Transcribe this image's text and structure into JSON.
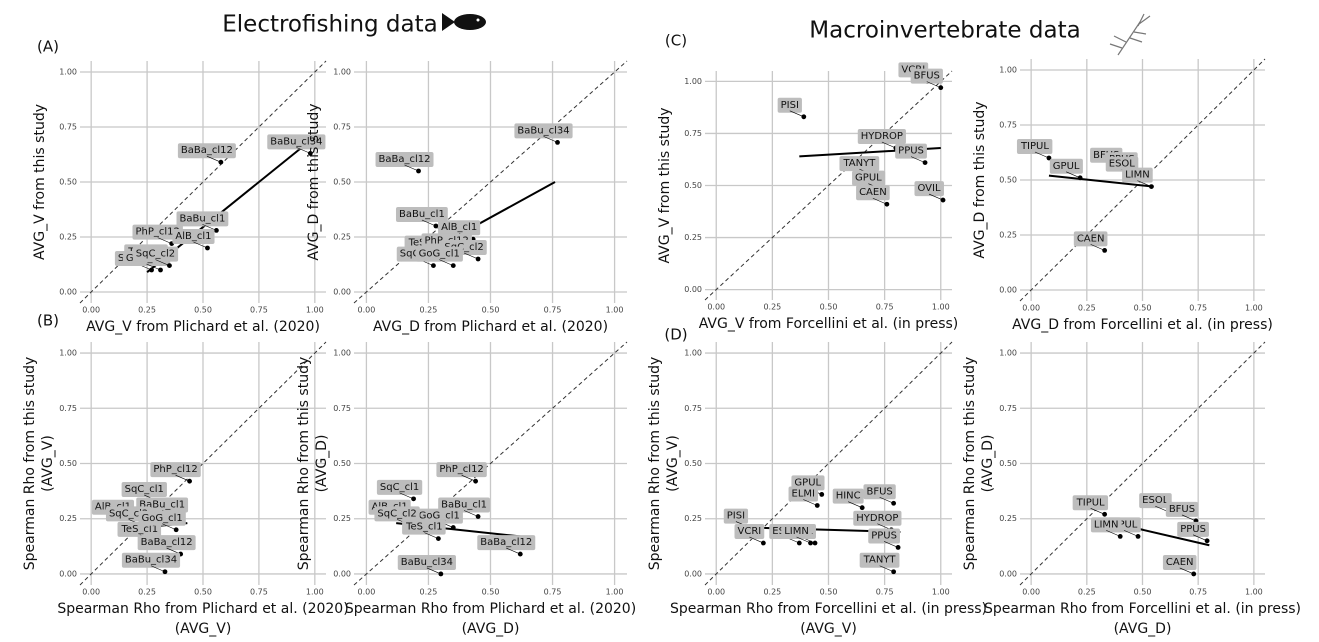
{
  "headings": {
    "left": "Electrofishing data",
    "right": "Macroinvertebrate data"
  },
  "panel_letters": [
    "(A)",
    "(B)",
    "(C)",
    "(D)"
  ],
  "chart_data": [
    {
      "type": "scatter",
      "xlabel": "AVG_V from Plichard et al. (2020)",
      "ylabel": "AVG_V from this study",
      "xlim": [
        -0.05,
        1.05
      ],
      "ylim": [
        -0.05,
        1.05
      ],
      "xticks": [
        {
          "value": 0,
          "label": "0.00"
        },
        {
          "value": 0.25,
          "label": "0.25"
        },
        {
          "value": 0.5,
          "label": "0.50"
        },
        {
          "value": 0.75,
          "label": "0.75"
        },
        {
          "value": 1,
          "label": "1.00"
        }
      ],
      "yticks": [
        {
          "value": 0,
          "label": "0.00"
        },
        {
          "value": 0.25,
          "label": "0.25"
        },
        {
          "value": 0.5,
          "label": "0.50"
        },
        {
          "value": 0.75,
          "label": "0.75"
        },
        {
          "value": 1,
          "label": "1.00"
        }
      ],
      "point_labels": [
        "BaBu_cl34",
        "BaBa_cl12",
        "BaBu_cl1",
        "PhP_cl12",
        "AlB_cl1",
        "TeS_cl1",
        "SqC_cl1",
        "GoG_cl1",
        "SqC_cl2"
      ],
      "x": [
        0.98,
        0.58,
        0.56,
        0.36,
        0.52,
        0.31,
        0.27,
        0.31,
        0.35
      ],
      "y": [
        0.63,
        0.59,
        0.28,
        0.22,
        0.2,
        0.13,
        0.1,
        0.1,
        0.12
      ],
      "fit": {
        "x": [
          0.25,
          0.97
        ],
        "y": [
          0.09,
          0.68
        ]
      }
    },
    {
      "type": "scatter",
      "xlabel": "AVG_D from Plichard et al. (2020)",
      "ylabel": "AVG_D from this study",
      "xlim": [
        -0.05,
        1.05
      ],
      "ylim": [
        -0.05,
        1.05
      ],
      "xticks": [
        {
          "value": 0,
          "label": "0.00"
        },
        {
          "value": 0.25,
          "label": "0.25"
        },
        {
          "value": 0.5,
          "label": "0.50"
        },
        {
          "value": 0.75,
          "label": "0.75"
        },
        {
          "value": 1,
          "label": "1.00"
        }
      ],
      "yticks": [
        {
          "value": 0,
          "label": "0.00"
        },
        {
          "value": 0.25,
          "label": "0.25"
        },
        {
          "value": 0.5,
          "label": "0.50"
        },
        {
          "value": 0.75,
          "label": "0.75"
        },
        {
          "value": 1,
          "label": "1.00"
        }
      ],
      "point_labels": [
        "BaBu_cl34",
        "BaBa_cl12",
        "BaBu_cl1",
        "AlB_cl1",
        "TeS_cl1",
        "PhP_cl12",
        "SqC_cl2",
        "SqC_cl1",
        "GoG_cl1"
      ],
      "x": [
        0.77,
        0.21,
        0.28,
        0.43,
        0.3,
        0.38,
        0.45,
        0.27,
        0.35
      ],
      "y": [
        0.68,
        0.55,
        0.3,
        0.24,
        0.17,
        0.18,
        0.15,
        0.12,
        0.12
      ],
      "fit": {
        "x": [
          0.26,
          0.76
        ],
        "y": [
          0.19,
          0.5
        ]
      }
    },
    {
      "type": "scatter",
      "xlabel": "AVG_V from Forcellini et al. (in press)",
      "ylabel": "AVG_V from this study",
      "xlim": [
        -0.05,
        1.05
      ],
      "ylim": [
        -0.05,
        1.05
      ],
      "xticks": [
        {
          "value": 0,
          "label": "0.00"
        },
        {
          "value": 0.25,
          "label": "0.25"
        },
        {
          "value": 0.5,
          "label": "0.50"
        },
        {
          "value": 0.75,
          "label": "0.75"
        },
        {
          "value": 1,
          "label": "1.00"
        }
      ],
      "yticks": [
        {
          "value": 0,
          "label": "0.00"
        },
        {
          "value": 0.25,
          "label": "0.25"
        },
        {
          "value": 0.5,
          "label": "0.50"
        },
        {
          "value": 0.75,
          "label": "0.75"
        },
        {
          "value": 1,
          "label": "1.00"
        }
      ],
      "point_labels": [
        "VCRI",
        "BFUS",
        "PISI",
        "HYDROP",
        "TANYT",
        "PPUS",
        "GPUL",
        "OVIL",
        "CAEN"
      ],
      "x": [
        0.94,
        1.0,
        0.39,
        0.8,
        0.7,
        0.93,
        0.74,
        1.01,
        0.76
      ],
      "y": [
        1.0,
        0.97,
        0.83,
        0.68,
        0.55,
        0.61,
        0.48,
        0.43,
        0.41
      ],
      "fit": {
        "x": [
          0.37,
          1.0
        ],
        "y": [
          0.64,
          0.68
        ]
      }
    },
    {
      "type": "scatter",
      "xlabel": "AVG_D from Forcellini et al. (in press)",
      "ylabel": "AVG_D from this study",
      "xlim": [
        -0.05,
        1.05
      ],
      "ylim": [
        -0.05,
        1.05
      ],
      "xticks": [
        {
          "value": 0,
          "label": "0.00"
        },
        {
          "value": 0.25,
          "label": "0.25"
        },
        {
          "value": 0.5,
          "label": "0.50"
        },
        {
          "value": 0.75,
          "label": "0.75"
        },
        {
          "value": 1,
          "label": "1.00"
        }
      ],
      "yticks": [
        {
          "value": 0,
          "label": "0.00"
        },
        {
          "value": 0.25,
          "label": "0.25"
        },
        {
          "value": 0.5,
          "label": "0.50"
        },
        {
          "value": 0.75,
          "label": "0.75"
        },
        {
          "value": 1,
          "label": "1.00"
        }
      ],
      "point_labels": [
        "TIPUL",
        "BFUS",
        "PPUS",
        "GPUL",
        "ESOL",
        "LIMN",
        "CAEN"
      ],
      "x": [
        0.08,
        0.4,
        0.47,
        0.22,
        0.47,
        0.54,
        0.33
      ],
      "y": [
        0.6,
        0.56,
        0.54,
        0.51,
        0.52,
        0.47,
        0.18
      ],
      "fit": {
        "x": [
          0.08,
          0.55
        ],
        "y": [
          0.52,
          0.47
        ]
      }
    },
    {
      "type": "scatter",
      "xlabel": [
        "Spearman Rho from Plichard et al. (2020)",
        "(AVG_V)"
      ],
      "ylabel": [
        "Spearman Rho from this study",
        "(AVG_V)"
      ],
      "xlim": [
        -0.05,
        1.05
      ],
      "ylim": [
        -0.05,
        1.05
      ],
      "xticks": [
        {
          "value": 0,
          "label": "0.00"
        },
        {
          "value": 0.25,
          "label": "0.25"
        },
        {
          "value": 0.5,
          "label": "0.50"
        },
        {
          "value": 0.75,
          "label": "0.75"
        },
        {
          "value": 1,
          "label": "1.00"
        }
      ],
      "yticks": [
        {
          "value": 0,
          "label": "0.00"
        },
        {
          "value": 0.25,
          "label": "0.25"
        },
        {
          "value": 0.5,
          "label": "0.50"
        },
        {
          "value": 0.75,
          "label": "0.75"
        },
        {
          "value": 1,
          "label": "1.00"
        }
      ],
      "point_labels": [
        "PhP_cl12",
        "SqC_cl1",
        "AlB_cl1",
        "BaBu_cl1",
        "SqC_cl2",
        "TeS_cl1",
        "GoG_cl1",
        "BaBa_cl12",
        "BaBu_cl34"
      ],
      "x": [
        0.44,
        0.3,
        0.16,
        0.38,
        0.23,
        0.28,
        0.38,
        0.4,
        0.33
      ],
      "y": [
        0.42,
        0.33,
        0.25,
        0.26,
        0.22,
        0.15,
        0.2,
        0.09,
        0.01
      ],
      "fit": {
        "x": [
          0.12,
          0.43
        ],
        "y": [
          0.2,
          0.23
        ]
      }
    },
    {
      "type": "scatter",
      "xlabel": [
        "Spearman Rho from Plichard et al. (2020)",
        "(AVG_D)"
      ],
      "ylabel": [
        "Spearman Rho from this study",
        "(AVG_D)"
      ],
      "xlim": [
        -0.05,
        1.05
      ],
      "ylim": [
        -0.05,
        1.05
      ],
      "xticks": [
        {
          "value": 0,
          "label": "0.00"
        },
        {
          "value": 0.25,
          "label": "0.25"
        },
        {
          "value": 0.5,
          "label": "0.50"
        },
        {
          "value": 0.75,
          "label": "0.75"
        },
        {
          "value": 1,
          "label": "1.00"
        }
      ],
      "yticks": [
        {
          "value": 0,
          "label": "0.00"
        },
        {
          "value": 0.25,
          "label": "0.25"
        },
        {
          "value": 0.5,
          "label": "0.50"
        },
        {
          "value": 0.75,
          "label": "0.75"
        },
        {
          "value": 1,
          "label": "1.00"
        }
      ],
      "point_labels": [
        "PhP_cl12",
        "SqC_cl1",
        "AlB_cl1",
        "BaBu_cl1",
        "GoG_cl1",
        "SqC_cl2",
        "TeS_cl1",
        "BaBa_cl12",
        "BaBu_cl34"
      ],
      "x": [
        0.44,
        0.19,
        0.15,
        0.45,
        0.35,
        0.18,
        0.29,
        0.62,
        0.3
      ],
      "y": [
        0.42,
        0.34,
        0.25,
        0.26,
        0.21,
        0.22,
        0.16,
        0.09,
        0.0
      ],
      "fit": {
        "x": [
          0.12,
          0.62
        ],
        "y": [
          0.23,
          0.17
        ]
      }
    },
    {
      "type": "scatter",
      "xlabel": [
        "Spearman Rho from Forcellini et al. (in press)",
        "(AVG_V)"
      ],
      "ylabel": [
        "Spearman Rho from this study",
        "(AVG_V)"
      ],
      "xlim": [
        -0.05,
        1.05
      ],
      "ylim": [
        -0.05,
        1.05
      ],
      "xticks": [
        {
          "value": 0,
          "label": "0.00"
        },
        {
          "value": 0.25,
          "label": "0.25"
        },
        {
          "value": 0.5,
          "label": "0.50"
        },
        {
          "value": 0.75,
          "label": "0.75"
        },
        {
          "value": 1,
          "label": "1.00"
        }
      ],
      "yticks": [
        {
          "value": 0,
          "label": "0.00"
        },
        {
          "value": 0.25,
          "label": "0.25"
        },
        {
          "value": 0.5,
          "label": "0.50"
        },
        {
          "value": 0.75,
          "label": "0.75"
        },
        {
          "value": 1,
          "label": "1.00"
        }
      ],
      "point_labels": [
        "GPUL",
        "BFUS",
        "ELMI",
        "HINC",
        "PISI",
        "HYDROP",
        "OVIL",
        "ESOL",
        "VCRI",
        "LIMN",
        "PPUS",
        "TANYT"
      ],
      "x": [
        0.47,
        0.79,
        0.45,
        0.65,
        0.15,
        0.78,
        0.44,
        0.37,
        0.21,
        0.42,
        0.81,
        0.79
      ],
      "y": [
        0.36,
        0.32,
        0.31,
        0.3,
        0.21,
        0.2,
        0.14,
        0.14,
        0.14,
        0.14,
        0.12,
        0.01
      ],
      "fit": {
        "x": [
          0.15,
          0.82
        ],
        "y": [
          0.21,
          0.19
        ]
      }
    },
    {
      "type": "scatter",
      "xlabel": [
        "Spearman Rho from Forcellini et al. (in press)",
        "(AVG_D)"
      ],
      "ylabel": [
        "Spearman Rho from this study",
        "(AVG_D)"
      ],
      "xlim": [
        -0.05,
        1.05
      ],
      "ylim": [
        -0.05,
        1.05
      ],
      "xticks": [
        {
          "value": 0,
          "label": "0.00"
        },
        {
          "value": 0.25,
          "label": "0.25"
        },
        {
          "value": 0.5,
          "label": "0.50"
        },
        {
          "value": 0.75,
          "label": "0.75"
        },
        {
          "value": 1,
          "label": "1.00"
        }
      ],
      "yticks": [
        {
          "value": 0,
          "label": "0.00"
        },
        {
          "value": 0.25,
          "label": "0.25"
        },
        {
          "value": 0.5,
          "label": "0.50"
        },
        {
          "value": 0.75,
          "label": "0.75"
        },
        {
          "value": 1,
          "label": "1.00"
        }
      ],
      "point_labels": [
        "TIPUL",
        "ESOL",
        "BFUS",
        "GPUL",
        "LIMN",
        "PPUS",
        "CAEN"
      ],
      "x": [
        0.33,
        0.62,
        0.74,
        0.48,
        0.4,
        0.79,
        0.73
      ],
      "y": [
        0.27,
        0.28,
        0.24,
        0.17,
        0.17,
        0.15,
        0.0
      ],
      "fit": {
        "x": [
          0.33,
          0.8
        ],
        "y": [
          0.24,
          0.13
        ]
      }
    }
  ]
}
